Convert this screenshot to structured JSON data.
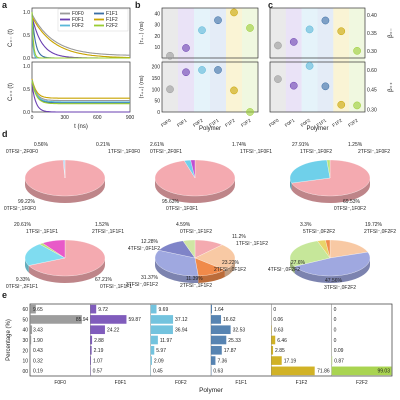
{
  "panel_labels": [
    "a",
    "b",
    "c",
    "d",
    "e"
  ],
  "legend": [
    {
      "name": "F0F0",
      "color": "#9a9a9a"
    },
    {
      "name": "F1F1",
      "color": "#3a6ea5"
    },
    {
      "name": "F0F1",
      "color": "#6a3fb0"
    },
    {
      "name": "F1F2",
      "color": "#c9a400"
    },
    {
      "name": "F0F2",
      "color": "#5ab8d8"
    },
    {
      "name": "F2F2",
      "color": "#9acd32"
    }
  ],
  "chart_data": [
    {
      "id": "a",
      "type": "line",
      "ylabel_top": "C₊₋ (t)",
      "ylabel_bottom": "C₊₊ (t)",
      "xlabel": "t (ns)",
      "xticks": [
        "0",
        "300",
        "600",
        "900"
      ],
      "yticks_top": [
        "1.0",
        "0.5",
        "0.0"
      ],
      "yticks_bottom": [
        "1.0",
        "0.5",
        "0.0"
      ],
      "xlim": [
        0,
        900
      ],
      "ylim": [
        0,
        1
      ]
    },
    {
      "id": "b",
      "type": "scatter",
      "xlabel": "Polymer",
      "categories": [
        "F0F0",
        "F0F1",
        "F0F2",
        "F1F1",
        "F1F2",
        "F2F2"
      ],
      "ylabel_top": "⟨τ₊₋⟩ (ns)",
      "ylabel_bottom": "⟨τ₊₊⟩ (ns)",
      "top_yticks": [
        "10",
        "20",
        "30",
        "40"
      ],
      "top_ylim": [
        0,
        45
      ],
      "top_values": [
        2,
        9,
        25,
        34,
        41,
        27
      ],
      "bottom_yticks": [
        "0",
        "50",
        "100",
        "150",
        "200"
      ],
      "bottom_ylim": [
        0,
        220
      ],
      "bottom_values": [
        100,
        175,
        185,
        185,
        95,
        0
      ]
    },
    {
      "id": "c",
      "type": "scatter",
      "xlabel": "Polymer",
      "categories": [
        "F0F0",
        "F0F1",
        "F0F2",
        "F1F1",
        "F1F2",
        "F2F2"
      ],
      "ylabel_top": "β₊₋",
      "ylabel_bottom": "β₊₊",
      "top_yticks": [
        "0.30",
        "0.35",
        "0.40"
      ],
      "top_ylim": [
        0.28,
        0.42
      ],
      "top_values": [
        0.315,
        0.325,
        0.36,
        0.385,
        0.355,
        0.3
      ],
      "bottom_yticks": [
        "0.30",
        "0.45",
        "0.60"
      ],
      "bottom_ylim": [
        0.28,
        0.66
      ],
      "bottom_values": [
        0.53,
        0.48,
        0.63,
        0.475,
        0.335,
        0.33
      ]
    },
    {
      "id": "d",
      "type": "pie",
      "pies": [
        {
          "slices": [
            {
              "label": "0TFSI⁻,1F0F0",
              "value": 99.22,
              "pct": "99.22%",
              "color": "#f4aab0"
            },
            {
              "label": "0TFSI⁻,2F0F0",
              "value": 0.56,
              "pct": "0.56%",
              "color": "#a9c4ea"
            },
            {
              "label": "1TFSI⁻,1F0F0",
              "value": 0.21,
              "pct": "0.21%",
              "color": "#6fd0ea"
            }
          ]
        },
        {
          "slices": [
            {
              "label": "0TFSI⁻,1F0F1",
              "value": 95.63,
              "pct": "95.63%",
              "color": "#f4aab0"
            },
            {
              "label": "0TFSI⁻,2F0F1",
              "value": 2.61,
              "pct": "2.61%",
              "color": "#6fd0ea"
            },
            {
              "label": "1TFSI⁻,1F0F1",
              "value": 1.74,
              "pct": "1.74%",
              "color": "#c04fd0"
            }
          ]
        },
        {
          "slices": [
            {
              "label": "0TFSI⁻,1F0F2",
              "value": 69.53,
              "pct": "69.53%",
              "color": "#f4aab0"
            },
            {
              "label": "1TFSI⁻,1F0F2",
              "value": 27.91,
              "pct": "27.91%",
              "color": "#6fd0ea"
            },
            {
              "label": "2TFSI⁻,1F0F2",
              "value": 1.25,
              "pct": "1.25%",
              "color": "#b9e37a"
            }
          ]
        },
        {
          "slices": [
            {
              "label": "0TFSI⁻,1F1F1",
              "value": 67.21,
              "pct": "67.21%",
              "color": "#f4aab0"
            },
            {
              "label": "1TFSI⁻,1F1F1",
              "value": 20.61,
              "pct": "20.61%",
              "color": "#7fdcf0"
            },
            {
              "label": "2TFSI⁻,1F1F1",
              "value": 1.52,
              "pct": "1.52%",
              "color": "#b9e37a"
            },
            {
              "label": "0TFSI⁻,2F1F1",
              "value": 9.33,
              "pct": "9.33%",
              "color": "#e85ac8"
            }
          ]
        },
        {
          "slices": [
            {
              "label": "1TFSI⁻,1F1F2",
              "value": 11.2,
              "pct": "11.2%",
              "color": "#f4aab0"
            },
            {
              "label": "2TFSI⁻,0F1F2",
              "value": 23.22,
              "pct": "23.22%",
              "color": "#f8c9a4"
            },
            {
              "label": "2TFSI⁻,1F1F2",
              "value": 11.39,
              "pct": "11.39%",
              "color": "#f08a4a"
            },
            {
              "label": "3TFSI⁻,0F1F2",
              "value": 31.37,
              "pct": "31.37%",
              "color": "#9fa8e0"
            },
            {
              "label": "4TFSI⁻,0F1F2",
              "value": 12.28,
              "pct": "12.28%",
              "color": "#7f84c8"
            },
            {
              "label": "0TFSI⁻,1F1F2",
              "value": 4.59,
              "pct": "4.59%",
              "color": "#cfe6a4"
            }
          ]
        },
        {
          "slices": [
            {
              "label": "2TFSI⁻,0F2F2",
              "value": 19.72,
              "pct": "19.72%",
              "color": "#f8c9a4"
            },
            {
              "label": "3TFSI⁻,0F2F2",
              "value": 47.56,
              "pct": "47.56%",
              "color": "#9fa8e0"
            },
            {
              "label": "4TFSI⁻,0F2F2",
              "value": 27.6,
              "pct": "27.6%",
              "color": "#c6e79a"
            },
            {
              "label": "5TFSI⁻,0F2F2",
              "value": 3.3,
              "pct": "3.3%",
              "color": "#e9d46a"
            },
            {
              "label": "",
              "value": 1.82,
              "pct": "",
              "color": "#f08a4a"
            }
          ]
        }
      ]
    },
    {
      "id": "e",
      "type": "bar",
      "ylabel": "Percentage (%)",
      "xlabel": "Polymer",
      "yticks": [
        "00",
        "10",
        "20",
        "30",
        "40",
        "50",
        "60"
      ],
      "categories": [
        "F0F0",
        "F0F1",
        "F0F2",
        "F1F1",
        "F1F2",
        "F2F2"
      ],
      "columns": [
        {
          "name": "F0F0",
          "color": "#8c8c8c",
          "values": [
            0.19,
            0.32,
            0.43,
            1.9,
            3.43,
            85.94,
            9.65
          ]
        },
        {
          "name": "F0F1",
          "color": "#6a3fb0",
          "values": [
            0.57,
            1.07,
            2.19,
            2.88,
            24.22,
            59.87,
            9.72
          ]
        },
        {
          "name": "F0F2",
          "color": "#5ab8d8",
          "values": [
            0.45,
            2.09,
            5.97,
            11.97,
            36.94,
            37.12,
            9.69
          ]
        },
        {
          "name": "F1F1",
          "color": "#3a6ea5",
          "values": [
            0.63,
            7.36,
            17.87,
            25.33,
            32.53,
            16.62,
            1.64
          ]
        },
        {
          "name": "F1F2",
          "color": "#c9a400",
          "values": [
            71.86,
            17.19,
            2.85,
            6.46,
            0.63,
            0.06,
            0
          ]
        },
        {
          "name": "F2F2",
          "color": "#9acd32",
          "values": [
            99.03,
            0.87,
            0.09,
            0,
            0,
            0,
            0
          ]
        }
      ],
      "col_labels": [
        [
          "0.19",
          "0.32",
          "0.43",
          "1.90",
          "3.43",
          "85.94",
          "9.65"
        ],
        [
          "0.57",
          "1.07",
          "2.19",
          "2.88",
          "24.22",
          "59.87",
          "9.72"
        ],
        [
          "0.45",
          "2.09",
          "5.97",
          "11.97",
          "36.94",
          "37.12",
          "9.69"
        ],
        [
          "0.63",
          "7.36",
          "17.87",
          "25.33",
          "32.53",
          "16.62",
          "1.64"
        ],
        [
          "71.86",
          "17.19",
          "2.85",
          "6.46",
          "0.63",
          "0.06",
          "0"
        ],
        [
          "99.03",
          "0.87",
          "0.09",
          "0",
          "0",
          "0",
          "0"
        ]
      ]
    }
  ]
}
